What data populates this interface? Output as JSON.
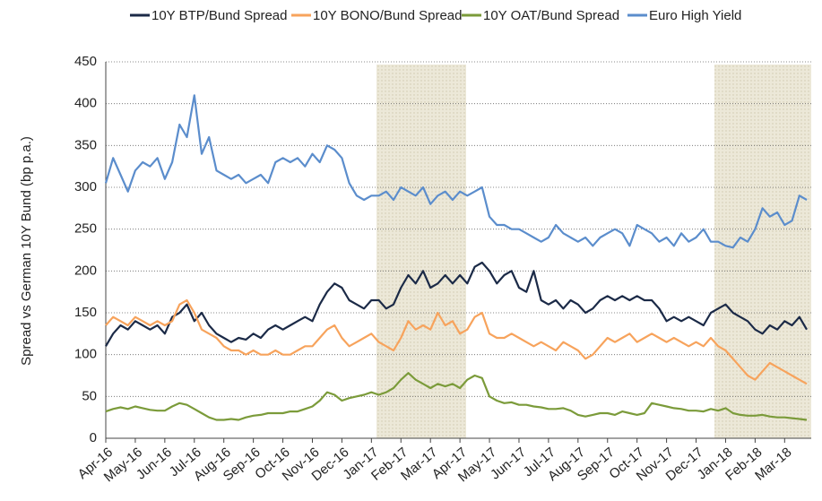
{
  "chart_data": {
    "type": "line",
    "y_label": "Spread vs German 10Y Bund (bp p.a.)",
    "categories": [
      "Apr-16",
      null,
      null,
      null,
      "May-16",
      null,
      null,
      null,
      "Jun-16",
      null,
      null,
      null,
      "Jul-16",
      null,
      null,
      null,
      "Aug-16",
      null,
      null,
      null,
      "Sep-16",
      null,
      null,
      null,
      "Oct-16",
      null,
      null,
      null,
      "Nov-16",
      null,
      null,
      null,
      "Dec-16",
      null,
      null,
      null,
      "Jan-17",
      null,
      null,
      null,
      "Feb-17",
      null,
      null,
      null,
      "Mar-17",
      null,
      null,
      null,
      "Apr-17",
      null,
      null,
      null,
      "May-17",
      null,
      null,
      null,
      "Jun-17",
      null,
      null,
      null,
      "Jul-17",
      null,
      null,
      null,
      "Aug-17",
      null,
      null,
      null,
      "Sep-17",
      null,
      null,
      null,
      "Oct-17",
      null,
      null,
      null,
      "Nov-17",
      null,
      null,
      null,
      "Dec-17",
      null,
      null,
      null,
      "Jan-18",
      null,
      null,
      null,
      "Feb-18",
      null,
      null,
      null,
      "Mar-18",
      null,
      null,
      null
    ],
    "series": [
      {
        "name": "10Y BTP/Bund Spread",
        "color": "#1b2a47",
        "values": [
          110,
          125,
          135,
          130,
          140,
          135,
          130,
          135,
          125,
          145,
          150,
          160,
          140,
          150,
          135,
          125,
          120,
          115,
          120,
          118,
          125,
          120,
          130,
          135,
          130,
          135,
          140,
          145,
          140,
          160,
          175,
          185,
          180,
          165,
          160,
          155,
          165,
          165,
          155,
          160,
          180,
          195,
          185,
          200,
          180,
          185,
          195,
          185,
          195,
          185,
          205,
          210,
          200,
          185,
          195,
          200,
          180,
          175,
          200,
          165,
          160,
          165,
          155,
          165,
          160,
          150,
          155,
          165,
          170,
          165,
          170,
          165,
          170,
          165,
          165,
          155,
          140,
          145,
          140,
          145,
          140,
          135,
          150,
          155,
          160,
          150,
          145,
          140,
          130,
          125,
          135,
          130,
          140,
          135,
          145,
          130
        ]
      },
      {
        "name": "10Y BONO/Bund Spread",
        "color": "#f7a35c",
        "values": [
          135,
          145,
          140,
          135,
          145,
          140,
          135,
          140,
          135,
          140,
          160,
          165,
          150,
          130,
          125,
          120,
          110,
          105,
          105,
          100,
          105,
          100,
          100,
          105,
          100,
          100,
          105,
          110,
          110,
          120,
          130,
          135,
          120,
          110,
          115,
          120,
          125,
          115,
          110,
          105,
          120,
          140,
          130,
          135,
          130,
          150,
          135,
          140,
          125,
          130,
          145,
          150,
          125,
          120,
          120,
          125,
          120,
          115,
          110,
          115,
          110,
          105,
          115,
          110,
          105,
          95,
          100,
          110,
          120,
          115,
          120,
          125,
          115,
          120,
          125,
          120,
          115,
          120,
          115,
          110,
          115,
          110,
          120,
          110,
          105,
          95,
          85,
          75,
          70,
          80,
          90,
          85,
          80,
          75,
          70,
          65
        ]
      },
      {
        "name": "10Y OAT/Bund Spread",
        "color": "#7b9b3a",
        "values": [
          32,
          35,
          37,
          35,
          38,
          36,
          34,
          33,
          33,
          38,
          42,
          40,
          35,
          30,
          25,
          22,
          22,
          23,
          22,
          25,
          27,
          28,
          30,
          30,
          30,
          32,
          32,
          35,
          38,
          45,
          55,
          52,
          45,
          48,
          50,
          52,
          55,
          52,
          55,
          60,
          70,
          78,
          70,
          65,
          60,
          65,
          62,
          65,
          60,
          70,
          75,
          72,
          50,
          45,
          42,
          43,
          40,
          40,
          38,
          37,
          35,
          35,
          36,
          33,
          28,
          26,
          28,
          30,
          30,
          28,
          32,
          30,
          28,
          30,
          42,
          40,
          38,
          36,
          35,
          33,
          33,
          32,
          35,
          33,
          36,
          30,
          28,
          27,
          27,
          28,
          26,
          25,
          25,
          24,
          23,
          22
        ]
      },
      {
        "name": "Euro High Yield",
        "color": "#5b8dcc",
        "values": [
          305,
          335,
          315,
          295,
          320,
          330,
          325,
          335,
          310,
          330,
          375,
          360,
          410,
          340,
          360,
          320,
          315,
          310,
          315,
          305,
          310,
          315,
          305,
          330,
          335,
          330,
          335,
          325,
          340,
          330,
          350,
          345,
          335,
          305,
          290,
          285,
          290,
          290,
          295,
          285,
          300,
          295,
          290,
          300,
          280,
          290,
          295,
          285,
          295,
          290,
          295,
          300,
          265,
          255,
          255,
          250,
          250,
          245,
          240,
          235,
          240,
          255,
          245,
          240,
          235,
          240,
          230,
          240,
          245,
          250,
          245,
          230,
          255,
          250,
          245,
          235,
          240,
          230,
          245,
          235,
          240,
          250,
          235,
          235,
          230,
          228,
          240,
          235,
          250,
          275,
          265,
          270,
          255,
          260,
          290,
          285
        ]
      }
    ],
    "ylim": [
      0,
      450
    ],
    "yticks": [
      0,
      50,
      100,
      150,
      200,
      250,
      300,
      350,
      400,
      450
    ],
    "grid": true,
    "legend": "top"
  }
}
